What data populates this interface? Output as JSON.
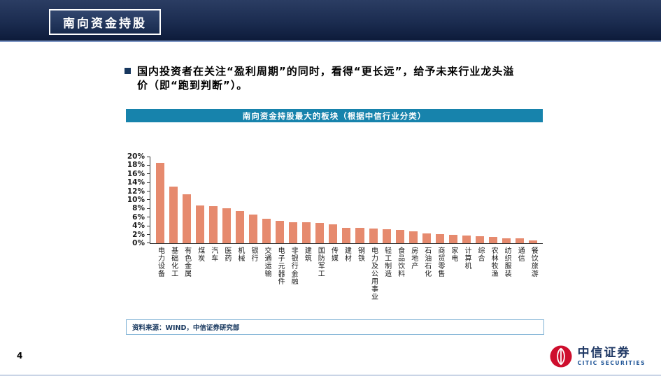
{
  "slide": {
    "title": "南向资金持股",
    "page_number": "4"
  },
  "bullet": {
    "text": "国内投资者在关注“盈利周期”的同时，看得“更长远”，给予未来行业龙头溢价（即“跑到判断”）。"
  },
  "source_note": "资料来源：WIND，中信证券研究部",
  "logo": {
    "cn": "中信证券",
    "en": "CITIC SECURITIES"
  },
  "colors": {
    "bar": "#E68A6E",
    "banner": "#1783AC",
    "header_navy": "#1b2c50",
    "accent_navy": "#17375E",
    "logo_red": "#CE0E2D",
    "source_border": "#7FB2D5"
  },
  "icons": {
    "bullet_marker": "square-bullet",
    "citic_emblem": "citic-emblem"
  },
  "chart_data": {
    "type": "bar",
    "title": "南向资金持股最大的板块（根据中信行业分类）",
    "xlabel": "",
    "ylabel": "",
    "ylim": [
      0,
      20
    ],
    "ytick_step": 2,
    "ytick_suffix": "%",
    "grid": false,
    "legend": "none",
    "bar_color": "#E68A6E",
    "categories": [
      "电力设备",
      "基础化工",
      "有色金属",
      "煤炭",
      "汽车",
      "医药",
      "机械",
      "银行",
      "交通运输",
      "电子元器件",
      "非银行金融",
      "建筑",
      "国防军工",
      "传媒",
      "建材",
      "钢铁",
      "电力及公用事业",
      "轻工制造",
      "食品饮料",
      "房地产",
      "石油石化",
      "商贸零售",
      "家电",
      "计算机",
      "综合",
      "农林牧渔",
      "纺织服装",
      "通信",
      "餐饮旅游"
    ],
    "values": [
      18.5,
      13.0,
      11.3,
      8.7,
      8.5,
      8.0,
      7.4,
      6.6,
      5.6,
      5.1,
      4.9,
      4.8,
      4.6,
      4.4,
      3.6,
      3.6,
      3.4,
      3.3,
      3.1,
      2.8,
      2.3,
      2.1,
      2.0,
      1.8,
      1.6,
      1.5,
      1.2,
      1.1,
      0.6
    ]
  }
}
